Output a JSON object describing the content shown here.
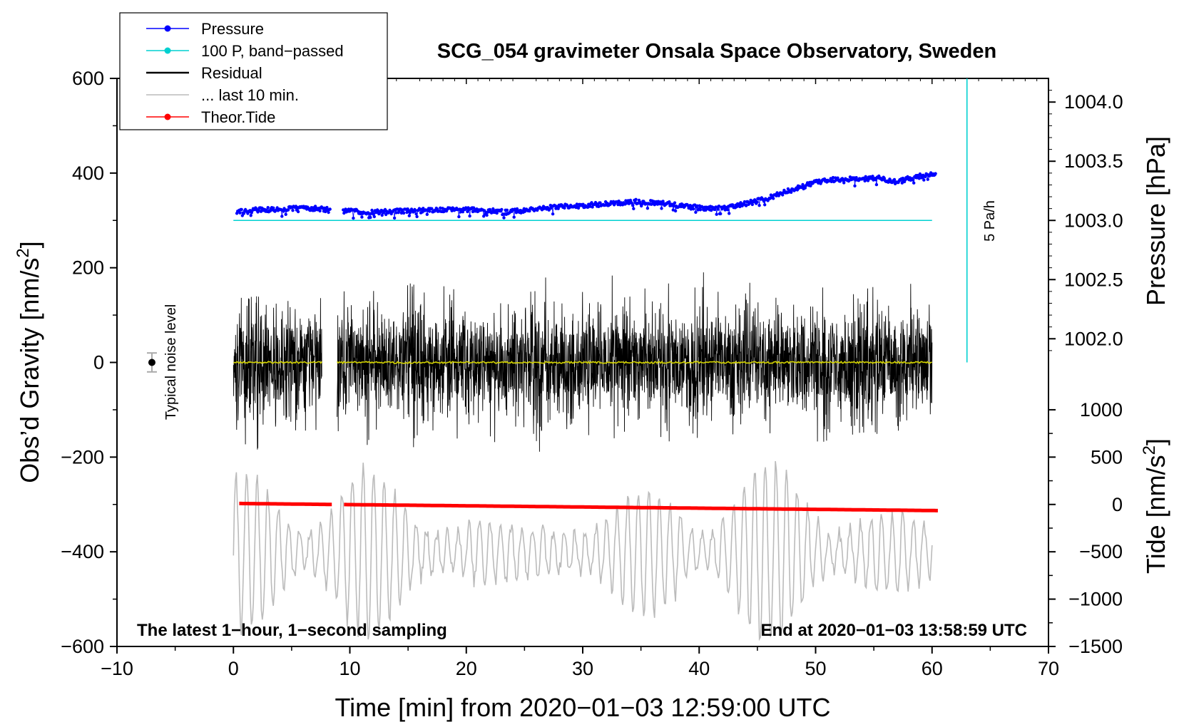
{
  "chart_data": {
    "type": "line",
    "title": "SCG_054 gravimeter Onsala Space Observatory, Sweden",
    "xlabel": "Time [min] from 2020−01−03 12:59:00 UTC",
    "ylabel_left": "Obs’d Gravity [nm/s",
    "ylabel_left_suffix": "]",
    "ylabel_right_top": "Pressure [hPa]",
    "ylabel_right_bottom": "Tide [nm/s",
    "ylabel_right_bottom_suffix": "]",
    "superscript": "2",
    "xlim": [
      -10,
      70
    ],
    "ylim": [
      -600,
      600
    ],
    "x_ticks": [
      -10,
      0,
      10,
      20,
      30,
      40,
      50,
      60,
      70
    ],
    "x_tick_labels": [
      "−10",
      "0",
      "10",
      "20",
      "30",
      "40",
      "50",
      "60",
      "70"
    ],
    "y_ticks": [
      -600,
      -400,
      -200,
      0,
      200,
      400,
      600
    ],
    "y_tick_labels": [
      "−600",
      "−400",
      "−200",
      "0",
      "200",
      "400",
      "600"
    ],
    "pressure_axis": {
      "ticks": [
        1002.0,
        1002.5,
        1003.0,
        1003.5,
        1004.0
      ],
      "tick_labels": [
        "1002.0",
        "1002.5",
        "1003.0",
        "1003.5",
        "1004.0"
      ],
      "gravity_per_hPa": 250,
      "ref_hpa": 1003.0,
      "ref_gravity": 300
    },
    "tide_axis": {
      "ticks": [
        -1500,
        -1000,
        -500,
        0,
        500,
        1000
      ],
      "tick_labels": [
        "−1500",
        "−1000",
        "−500",
        "0",
        "500",
        "1000"
      ],
      "gravity_per_unit": 0.2,
      "ref_tide": 0,
      "ref_gravity": -300
    },
    "legend": [
      {
        "label": "Pressure",
        "color": "#0000ff",
        "marker": true
      },
      {
        "label": "100 P, band−passed",
        "color": "#00d0d0",
        "marker": true
      },
      {
        "label": "Residual",
        "color": "#000000",
        "marker": false
      },
      {
        "label": "... last 10 min.",
        "color": "#bbbbbb",
        "marker": false
      },
      {
        "label": "Theor.Tide",
        "color": "#ff0000",
        "marker": true
      }
    ],
    "series": [
      {
        "name": "Pressure",
        "color": "#0000ff",
        "unit": "hPa",
        "x": [
          0.3,
          2,
          4,
          6,
          8.2,
          9.5,
          12,
          15,
          18,
          21,
          23.5,
          26,
          29,
          32,
          34.5,
          36.5,
          38,
          40.5,
          42.5,
          44,
          46,
          48,
          50,
          52,
          54,
          55.5,
          57,
          58.5,
          60.3
        ],
        "y": [
          1003.07,
          1003.09,
          1003.09,
          1003.11,
          1003.09,
          1003.08,
          1003.07,
          1003.08,
          1003.09,
          1003.09,
          1003.07,
          1003.1,
          1003.12,
          1003.14,
          1003.16,
          1003.15,
          1003.13,
          1003.1,
          1003.11,
          1003.14,
          1003.19,
          1003.26,
          1003.32,
          1003.35,
          1003.35,
          1003.36,
          1003.32,
          1003.37,
          1003.39
        ],
        "gaps": [
          [
            8.3,
            9.4
          ]
        ]
      },
      {
        "name": "100 P, band−passed",
        "color": "#00d0d0",
        "x": [
          0,
          60
        ],
        "y": [
          300,
          300
        ]
      },
      {
        "name": "Residual",
        "color": "#000000",
        "x_range": [
          0,
          60
        ],
        "gap": [
          7.6,
          8.9
        ],
        "amplitude_nm_s2": [
          60,
          200
        ],
        "mean_line_color": "#d4d400",
        "mean_value": 0
      },
      {
        "name": "... last 10 min.",
        "color": "#bbbbbb",
        "x_range": [
          0,
          60
        ],
        "baseline": -400,
        "amplitude_nm_s2": [
          40,
          200
        ]
      },
      {
        "name": "Theor.Tide",
        "color": "#ff0000",
        "unit": "nm/s2",
        "x": [
          0.5,
          60.5
        ],
        "y": [
          10,
          -65
        ],
        "gaps": [
          [
            8.5,
            9.4
          ]
        ]
      }
    ],
    "pressure_rate": {
      "label": "5 Pa/h",
      "x": 63,
      "y_range": [
        0,
        600
      ],
      "color": "#00d0d0"
    },
    "noise_level": {
      "label": "Typical noise level",
      "x": -7,
      "value": 0,
      "error": 20
    },
    "annotations": {
      "left_note": "The latest 1−hour, 1−second sampling",
      "right_note": "End at 2020−01−03 13:58:59 UTC"
    }
  }
}
